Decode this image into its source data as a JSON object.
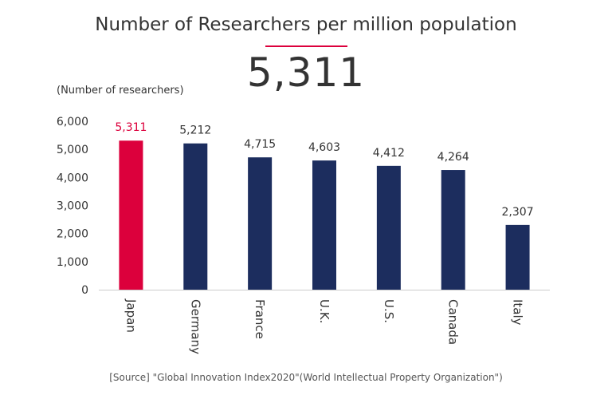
{
  "colors": {
    "highlight": "#dc003c",
    "bar": "#1c2d5e",
    "axis": "#cccccc",
    "text": "#333333"
  },
  "chart_data": {
    "type": "bar",
    "title": "Number of Researchers per million population",
    "highlight_value": "5,311",
    "ylabel": "(Number of researchers)",
    "source": "[Source] \"Global Innovation Index2020\"(World Intellectual Property Organization\")",
    "categories": [
      "Japan",
      "Germany",
      "France",
      "U.K.",
      "U.S.",
      "Canada",
      "Italy"
    ],
    "values": [
      5311,
      5212,
      4715,
      4603,
      4412,
      4264,
      2307
    ],
    "value_labels": [
      "5,311",
      "5,212",
      "4,715",
      "4,603",
      "4,412",
      "4,264",
      "2,307"
    ],
    "highlight_index": 0,
    "ylim": [
      0,
      6000
    ],
    "yticks": [
      0,
      1000,
      2000,
      3000,
      4000,
      5000,
      6000
    ],
    "ytick_labels": [
      "0",
      "1,000",
      "2,000",
      "3,000",
      "4,000",
      "5,000",
      "6,000"
    ],
    "grid": false,
    "legend": "none"
  }
}
